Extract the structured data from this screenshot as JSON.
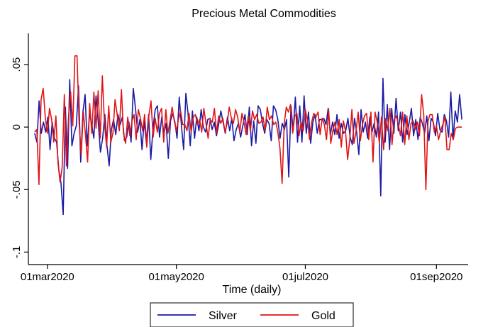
{
  "chart_data": {
    "type": "line",
    "title": "Precious Metal Commodities",
    "xlabel": "Time (daily)",
    "ylabel": "",
    "x_start": "2020-02-24",
    "x_end": "2020-09-13",
    "xlim": [
      "2020-02-21",
      "2020-09-16"
    ],
    "ylim": [
      -0.11,
      0.075
    ],
    "x_ticks": [
      {
        "date": "2020-03-01",
        "label": "01mar2020"
      },
      {
        "date": "2020-05-01",
        "label": "01may2020"
      },
      {
        "date": "2020-07-01",
        "label": "01jul2020"
      },
      {
        "date": "2020-09-01",
        "label": "01sep2020"
      }
    ],
    "y_ticks": [
      {
        "value": 0.05,
        "label": ".05"
      },
      {
        "value": 0,
        "label": "0"
      },
      {
        "value": -0.05,
        "label": "-.05"
      },
      {
        "value": -0.1,
        "label": "-.1"
      }
    ],
    "grid": false,
    "legend_position": "bottom",
    "series": [
      {
        "name": "Silver",
        "color": "#1a1aa6",
        "values": [
          -0.005,
          -0.012,
          0.021,
          -0.005,
          0.004,
          -0.004,
          0.008,
          -0.018,
          0.004,
          -0.009,
          -0.012,
          -0.034,
          -0.045,
          -0.07,
          0.016,
          -0.033,
          0.038,
          -0.015,
          -0.005,
          0.001,
          0.033,
          -0.028,
          0.012,
          0.026,
          -0.015,
          0.01,
          0.003,
          -0.009,
          0.025,
          0.004,
          -0.02,
          -0.009,
          0.01,
          -0.015,
          -0.031,
          -0.002,
          0.006,
          -0.006,
          0.01,
          0.002,
          0.008,
          -0.011,
          -0.008,
          0.004,
          -0.012,
          0.031,
          0.015,
          -0.004,
          0.006,
          -0.018,
          0.005,
          -0.013,
          0.01,
          -0.026,
          -0.001,
          0.014,
          0.017,
          -0.008,
          0.008,
          -0.005,
          0.003,
          -0.025,
          0.005,
          0.011,
          0.004,
          -0.009,
          0.024,
          0.001,
          -0.018,
          0.027,
          0.011,
          -0.015,
          0.013,
          -0.009,
          0.008,
          -0.003,
          0.014,
          0.0,
          -0.004,
          0.006,
          0.007,
          -0.002,
          0.004,
          -0.007,
          0.002,
          0.013,
          0.004,
          -0.005,
          0.008,
          -0.003,
          0.007,
          -0.011,
          -0.002,
          0.003,
          -0.008,
          0.001,
          0.01,
          -0.006,
          0.016,
          -0.015,
          0.005,
          -0.013,
          0.017,
          0.014,
          0.003,
          -0.005,
          0.006,
          0.003,
          -0.011,
          0.017,
          0.014,
          0.006,
          -0.009,
          0.003,
          -0.002,
          0.006,
          -0.04,
          0.017,
          -0.003,
          0.024,
          -0.012,
          0.017,
          -0.012,
          0.025,
          -0.005,
          0.012,
          -0.013,
          0.004,
          0.01,
          -0.005,
          0.006,
          0.006,
          0.007,
          0.002,
          0.015,
          -0.006,
          0.004,
          -0.006,
          0.01,
          -0.009,
          0.003,
          -0.005,
          -0.003,
          0.007,
          -0.008,
          -0.014,
          0.007,
          -0.004,
          -0.022,
          0.014,
          -0.004,
          0.004,
          -0.009,
          0.008,
          -0.004,
          0.003,
          -0.008,
          0.012,
          -0.055,
          0.039,
          -0.012,
          0.018,
          -0.018,
          0.015,
          -0.005,
          0.023,
          -0.003,
          0.012,
          -0.012,
          0.01,
          -0.006,
          0.004,
          0.015,
          -0.007,
          0.006,
          -0.01,
          0.008,
          0.003,
          -0.005,
          0.009,
          -0.011,
          0.007,
          0.004,
          -0.007,
          0.011,
          -0.002,
          -0.004,
          0.01,
          0.005,
          -0.008,
          0.028,
          -0.01,
          0.013,
          0.004,
          0.026,
          0.006
        ]
      },
      {
        "name": "Gold",
        "color": "#e01515",
        "values": [
          -0.004,
          -0.002,
          -0.046,
          0.022,
          0.031,
          0.008,
          -0.005,
          0.015,
          0.006,
          -0.012,
          0.009,
          -0.028,
          -0.044,
          -0.032,
          0.026,
          -0.031,
          0.008,
          0.028,
          0.001,
          0.057,
          0.057,
          0.004,
          -0.022,
          0.012,
          -0.006,
          -0.028,
          0.019,
          -0.005,
          0.028,
          -0.001,
          0.029,
          -0.009,
          0.041,
          0.003,
          -0.016,
          0.017,
          -0.012,
          -0.005,
          0.022,
          0.01,
          -0.003,
          0.03,
          -0.005,
          -0.013,
          0.008,
          -0.007,
          0.005,
          0.01,
          -0.01,
          0.014,
          0.007,
          -0.003,
          0.01,
          -0.016,
          0.009,
          0.021,
          -0.008,
          0.007,
          -0.004,
          0.011,
          0.015,
          -0.012,
          0.014,
          -0.005,
          0.005,
          0.016,
          0.005,
          -0.003,
          0.006,
          0.013,
          0.002,
          0.002,
          -0.003,
          0.011,
          -0.004,
          0.008,
          0.01,
          0.002,
          0.006,
          -0.004,
          0.015,
          0.003,
          -0.009,
          0.006,
          0.004,
          0.015,
          -0.005,
          0.009,
          0.003,
          0.007,
          -0.004,
          0.003,
          0.016,
          0.007,
          0.003,
          0.014,
          0.008,
          -0.004,
          0.011,
          0.004,
          -0.006,
          0.009,
          -0.003,
          0.013,
          0.006,
          0.01,
          0.003,
          0.004,
          0.008,
          -0.003,
          0.016,
          0.006,
          0.009,
          0.002,
          0.004,
          -0.004,
          -0.017,
          -0.045,
          0.003,
          0.016,
          0.012,
          0.018,
          -0.005,
          0.009,
          0.011,
          -0.007,
          0.004,
          -0.003,
          0.014,
          0.005,
          -0.01,
          0.004,
          0.011,
          0.008,
          0.012,
          -0.006,
          0.007,
          0.002,
          -0.01,
          0.014,
          -0.013,
          -0.003,
          0.004,
          -0.006,
          0.006,
          -0.016,
          0.005,
          -0.003,
          -0.026,
          -0.01,
          0.014,
          -0.013,
          -0.003,
          0.012,
          -0.011,
          0.002,
          0.009,
          0.011,
          -0.01,
          0.012,
          -0.028,
          0.012,
          0.004,
          -0.013,
          0.008,
          -0.018,
          0.007,
          -0.003,
          0.015,
          -0.014,
          0.006,
          0.009,
          0.002,
          -0.007,
          0.012,
          -0.014,
          0.009,
          -0.01,
          0.003,
          0.005,
          -0.002,
          0.004,
          -0.007,
          0.026,
          0.01,
          -0.05,
          0.005,
          0.01,
          0.01,
          -0.004,
          0.001,
          -0.01,
          -0.003,
          0.002,
          0.008,
          -0.018,
          -0.018,
          -0.005,
          -0.01,
          -0.001,
          0.0,
          0.0,
          0.0
        ]
      }
    ]
  }
}
